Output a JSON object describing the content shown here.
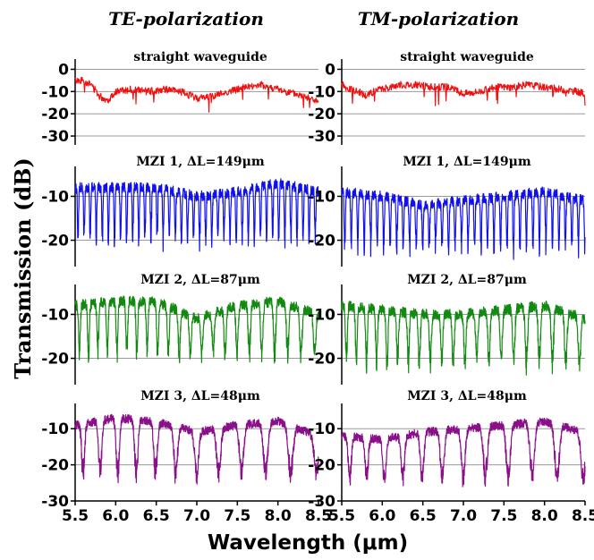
{
  "colors": {
    "red": "#ee1111",
    "blue": "#1010ee",
    "green": "#128a12",
    "purple": "#8a108a"
  },
  "figure": {
    "col_titles": [
      "TE-polarization",
      "TM-polarization"
    ],
    "ylabel": "Transmission (dB)",
    "xlabel": "Wavelength (μm)"
  },
  "chart_data": {
    "type": "line",
    "grid": true,
    "xlim": [
      5.5,
      8.5
    ],
    "xticks": [
      5.5,
      6.0,
      6.5,
      7.0,
      7.5,
      8.0,
      8.5
    ],
    "xtick_labels": [
      "5.5",
      "6.0",
      "6.5",
      "7.0",
      "7.5",
      "8.0",
      "8.5"
    ],
    "xlabel": "Wavelength (μm)",
    "ylabel": "Transmission (dB)",
    "panels": [
      {
        "row": 0,
        "col": 0,
        "title": "straight waveguide",
        "polarization": "TE-polarization",
        "color": "#ee1111",
        "ylim": [
          -34,
          3
        ],
        "yticks": [
          0,
          -10,
          -20,
          -30
        ],
        "x": [
          5.5,
          5.6,
          5.7,
          5.8,
          5.9,
          6.0,
          6.2,
          6.4,
          6.6,
          6.8,
          7.0,
          7.2,
          7.4,
          7.6,
          7.8,
          8.0,
          8.2,
          8.4,
          8.5
        ],
        "y": [
          -5,
          -5,
          -7,
          -12,
          -14,
          -10,
          -9,
          -10,
          -9,
          -10,
          -13,
          -12,
          -10,
          -8,
          -7,
          -9,
          -11,
          -13,
          -15
        ]
      },
      {
        "row": 0,
        "col": 1,
        "title": "straight waveguide",
        "polarization": "TM-polarization",
        "color": "#ee1111",
        "ylim": [
          -34,
          3
        ],
        "yticks": [
          0,
          -10,
          -20,
          -30
        ],
        "x": [
          5.5,
          5.6,
          5.7,
          5.8,
          5.9,
          6.0,
          6.2,
          6.4,
          6.6,
          6.8,
          7.0,
          7.2,
          7.4,
          7.6,
          7.8,
          8.0,
          8.2,
          8.4,
          8.5
        ],
        "y": [
          -7,
          -9,
          -10,
          -12,
          -10,
          -9,
          -7,
          -7,
          -8,
          -8,
          -11,
          -10,
          -8,
          -8,
          -7,
          -8,
          -9,
          -10,
          -11
        ]
      },
      {
        "row": 1,
        "col": 0,
        "title": "MZI 1, ΔL=149μm",
        "polarization": "TE-polarization",
        "color": "#1010ee",
        "ylim": [
          -26,
          -4
        ],
        "yticks": [
          -10,
          -20
        ],
        "peak_level_x": [
          5.5,
          6.0,
          6.5,
          7.0,
          7.5,
          8.0,
          8.5
        ],
        "peak_level_y": [
          -8,
          -8,
          -8,
          -10,
          -9,
          -7,
          -9
        ],
        "fringe_period_um": [
          0.075,
          0.075
        ],
        "dip_depth_dB": -22
      },
      {
        "row": 1,
        "col": 1,
        "title": "MZI 1, ΔL=149μm",
        "polarization": "TM-polarization",
        "color": "#1010ee",
        "ylim": [
          -26,
          -4
        ],
        "yticks": [
          -10,
          -20
        ],
        "peak_level_x": [
          5.5,
          6.0,
          6.5,
          7.0,
          7.5,
          8.0,
          8.5
        ],
        "peak_level_y": [
          -9,
          -10,
          -12,
          -11,
          -10,
          -9,
          -11
        ],
        "fringe_period_um": [
          0.08,
          0.08
        ],
        "dip_depth_dB": -24
      },
      {
        "row": 2,
        "col": 0,
        "title": "MZI 2, ΔL=87μm",
        "polarization": "TE-polarization",
        "color": "#128a12",
        "ylim": [
          -26,
          -4
        ],
        "yticks": [
          -10,
          -20
        ],
        "peak_level_x": [
          5.5,
          6.0,
          6.5,
          7.0,
          7.5,
          8.0,
          8.5
        ],
        "peak_level_y": [
          -8,
          -7,
          -7,
          -11,
          -8,
          -7,
          -10
        ],
        "fringe_period_um": [
          0.11,
          0.17
        ],
        "dip_depth_dB": -21
      },
      {
        "row": 2,
        "col": 1,
        "title": "MZI 2, ΔL=87μm",
        "polarization": "TM-polarization",
        "color": "#128a12",
        "ylim": [
          -26,
          -4
        ],
        "yticks": [
          -10,
          -20
        ],
        "peak_level_x": [
          5.5,
          6.0,
          6.5,
          7.0,
          7.5,
          8.0,
          8.5
        ],
        "peak_level_y": [
          -8,
          -9,
          -10,
          -10,
          -9,
          -8,
          -11
        ],
        "fringe_period_um": [
          0.12,
          0.17
        ],
        "dip_depth_dB": -23
      },
      {
        "row": 3,
        "col": 0,
        "title": "MZI 3, ΔL=48μm",
        "polarization": "TE-polarization",
        "color": "#8a108a",
        "ylim": [
          -30,
          -4
        ],
        "yticks": [
          -10,
          -20,
          -30
        ],
        "peak_level_x": [
          5.5,
          6.0,
          6.5,
          7.0,
          7.5,
          8.0,
          8.5
        ],
        "peak_level_y": [
          -9,
          -7,
          -8,
          -11,
          -9,
          -8,
          -12
        ],
        "fringe_period_um": [
          0.2,
          0.33
        ],
        "dip_depth_dB": -25
      },
      {
        "row": 3,
        "col": 1,
        "title": "MZI 3, ΔL=48μm",
        "polarization": "TM-polarization",
        "color": "#8a108a",
        "ylim": [
          -30,
          -4
        ],
        "yticks": [
          -10,
          -20,
          -30
        ],
        "peak_level_x": [
          5.5,
          6.0,
          6.5,
          7.0,
          7.5,
          8.0,
          8.5
        ],
        "peak_level_y": [
          -12,
          -13,
          -11,
          -10,
          -9,
          -8,
          -11
        ],
        "fringe_period_um": [
          0.2,
          0.33
        ],
        "dip_depth_dB": -26
      }
    ]
  }
}
